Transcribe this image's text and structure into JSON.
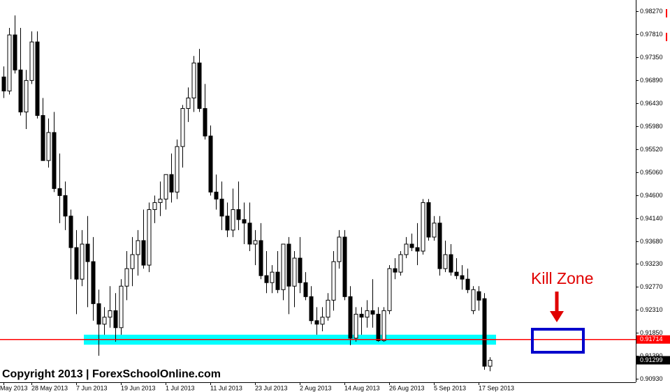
{
  "chart_data": {
    "type": "candlestick",
    "categories": [
      "May 2013",
      null,
      null,
      null,
      null,
      "28 May 2013",
      null,
      null,
      null,
      null,
      null,
      null,
      null,
      "7 Jun 2013",
      null,
      null,
      null,
      null,
      null,
      null,
      null,
      "19 Jun 2013",
      null,
      null,
      null,
      null,
      null,
      null,
      null,
      "1 Jul 2013",
      null,
      null,
      null,
      null,
      null,
      null,
      null,
      "11 Jul 2013",
      null,
      null,
      null,
      null,
      null,
      null,
      null,
      "23 Jul 2013",
      null,
      null,
      null,
      null,
      null,
      null,
      null,
      "2 Aug 2013",
      null,
      null,
      null,
      null,
      null,
      null,
      null,
      "14 Aug 2013",
      null,
      null,
      null,
      null,
      null,
      null,
      null,
      "26 Aug 2013",
      null,
      null,
      null,
      null,
      null,
      null,
      null,
      "5 Sep 2013",
      null,
      null,
      null,
      null,
      null,
      null,
      null,
      "17 Sep 2013",
      null,
      null
    ],
    "open": [
      0.9696,
      0.9668,
      0.978,
      0.971,
      0.9626,
      0.9689,
      0.9766,
      0.9619,
      0.9529,
      0.9585,
      0.9473,
      0.9459,
      0.9418,
      0.9355,
      0.9292,
      0.9362,
      0.9327,
      0.9243,
      0.9202,
      0.9216,
      0.9229,
      0.9195,
      0.9278,
      0.9313,
      0.9341,
      0.9369,
      0.932,
      0.9431,
      0.9445,
      0.9452,
      0.9501,
      0.9466,
      0.9557,
      0.9633,
      0.9654,
      0.9724,
      0.9633,
      0.9578,
      0.9466,
      0.9452,
      0.9418,
      0.939,
      0.9431,
      0.9411,
      0.9404,
      0.9362,
      0.9369,
      0.9299,
      0.9285,
      0.9306,
      0.9271,
      0.9362,
      0.9278,
      0.9334,
      0.9285,
      0.9257,
      0.9209,
      0.9202,
      0.9216,
      0.925,
      0.9327,
      0.9376,
      0.9257,
      0.9174,
      0.9222,
      0.9216,
      0.9229,
      0.9222,
      0.9169,
      0.9229,
      0.9313,
      0.9306,
      0.9341,
      0.9362,
      0.9355,
      0.9348,
      0.9445,
      0.9376,
      0.9404,
      0.9313,
      0.9341,
      0.9306,
      0.9299,
      0.9292,
      0.9229,
      0.9267,
      0.9253,
      0.9118
    ],
    "high": [
      0.9717,
      0.9794,
      0.9819,
      0.9794,
      0.971,
      0.9787,
      0.9787,
      0.9654,
      0.9613,
      0.9626,
      0.9543,
      0.9487,
      0.9431,
      0.939,
      0.939,
      0.9418,
      0.9376,
      0.9271,
      0.9236,
      0.9278,
      0.9264,
      0.9292,
      0.9348,
      0.9376,
      0.939,
      0.9431,
      0.9445,
      0.9459,
      0.9487,
      0.9501,
      0.9543,
      0.9571,
      0.964,
      0.9675,
      0.9738,
      0.9752,
      0.9682,
      0.9599,
      0.9501,
      0.9487,
      0.9445,
      0.9473,
      0.9487,
      0.9445,
      0.9445,
      0.939,
      0.9404,
      0.9348,
      0.932,
      0.9348,
      0.9362,
      0.9376,
      0.9348,
      0.9376,
      0.9306,
      0.9278,
      0.9236,
      0.9236,
      0.9264,
      0.9348,
      0.939,
      0.939,
      0.9278,
      0.9236,
      0.9236,
      0.925,
      0.9292,
      0.9236,
      0.9236,
      0.932,
      0.9334,
      0.9348,
      0.9376,
      0.9383,
      0.9404,
      0.9452,
      0.9452,
      0.9418,
      0.9418,
      0.9369,
      0.9362,
      0.9334,
      0.932,
      0.9313,
      0.9278,
      0.9278,
      0.9264,
      0.9136
    ],
    "low": [
      0.9654,
      0.9661,
      0.9703,
      0.9619,
      0.9592,
      0.9682,
      0.9613,
      0.9529,
      0.9515,
      0.9466,
      0.9404,
      0.939,
      0.9292,
      0.9222,
      0.9278,
      0.9236,
      0.9209,
      0.9139,
      0.9181,
      0.9195,
      0.9167,
      0.9181,
      0.925,
      0.9278,
      0.9299,
      0.9313,
      0.9306,
      0.9404,
      0.9418,
      0.9431,
      0.9445,
      0.9452,
      0.9515,
      0.9606,
      0.9626,
      0.9626,
      0.9571,
      0.9459,
      0.9431,
      0.939,
      0.9376,
      0.9376,
      0.939,
      0.9362,
      0.9348,
      0.932,
      0.9292,
      0.9264,
      0.9264,
      0.9264,
      0.925,
      0.9222,
      0.9236,
      0.9264,
      0.925,
      0.9202,
      0.9181,
      0.9188,
      0.9209,
      0.9229,
      0.9313,
      0.925,
      0.916,
      0.9167,
      0.9181,
      0.9195,
      0.9195,
      0.9167,
      0.9167,
      0.9222,
      0.9292,
      0.9299,
      0.9334,
      0.9348,
      0.932,
      0.9341,
      0.9369,
      0.9369,
      0.9299,
      0.9306,
      0.9299,
      0.9292,
      0.9271,
      0.9264,
      0.9222,
      0.9229,
      0.9111,
      0.9108
    ],
    "close": [
      0.9668,
      0.978,
      0.971,
      0.9626,
      0.9689,
      0.9766,
      0.9619,
      0.9529,
      0.9585,
      0.9473,
      0.9459,
      0.9418,
      0.9355,
      0.9292,
      0.9362,
      0.9327,
      0.9243,
      0.9202,
      0.9216,
      0.9229,
      0.9195,
      0.9278,
      0.9313,
      0.9341,
      0.9369,
      0.932,
      0.9431,
      0.9445,
      0.9452,
      0.9501,
      0.9466,
      0.9557,
      0.9633,
      0.9654,
      0.9724,
      0.9633,
      0.9578,
      0.9466,
      0.9452,
      0.9418,
      0.939,
      0.9431,
      0.9411,
      0.9404,
      0.9362,
      0.9369,
      0.9299,
      0.9285,
      0.9306,
      0.9271,
      0.9362,
      0.9278,
      0.9334,
      0.9285,
      0.9257,
      0.9209,
      0.9202,
      0.9216,
      0.925,
      0.9327,
      0.9376,
      0.9257,
      0.9174,
      0.9222,
      0.9216,
      0.9229,
      0.9222,
      0.9169,
      0.9229,
      0.9313,
      0.9306,
      0.9341,
      0.9362,
      0.9355,
      0.9348,
      0.9445,
      0.9376,
      0.9404,
      0.9313,
      0.9341,
      0.9306,
      0.9299,
      0.9292,
      0.9271,
      0.9271,
      0.925,
      0.9118,
      0.913
    ],
    "ylim": [
      0.9086,
      0.9847
    ],
    "yticks": [
      {
        "value": 0.9093,
        "label": "0.90930"
      },
      {
        "value": 0.9139,
        "label": "0.91390"
      },
      {
        "value": 0.9185,
        "label": "0.91850"
      },
      {
        "value": 0.9231,
        "label": "0.92310"
      },
      {
        "value": 0.9277,
        "label": "0.92770"
      },
      {
        "value": 0.9323,
        "label": "0.93230"
      },
      {
        "value": 0.9368,
        "label": "0.93680"
      },
      {
        "value": 0.9414,
        "label": "0.94140"
      },
      {
        "value": 0.946,
        "label": "0.94600"
      },
      {
        "value": 0.9506,
        "label": "0.95060"
      },
      {
        "value": 0.9552,
        "label": "0.95520"
      },
      {
        "value": 0.9598,
        "label": "0.95980"
      },
      {
        "value": 0.9643,
        "label": "0.96430"
      },
      {
        "value": 0.9689,
        "label": "0.96890"
      },
      {
        "value": 0.9735,
        "label": "0.97350"
      },
      {
        "value": 0.9781,
        "label": "0.97810"
      },
      {
        "value": 0.9827,
        "label": "0.98270"
      }
    ],
    "zone": {
      "low": 0.9161,
      "high": 0.9181,
      "color": "#00ffff"
    },
    "hline": {
      "value": 0.91714,
      "label": "0.91714",
      "color": "#ff0000"
    },
    "last_price": {
      "value": 0.91299,
      "label": "0.91299"
    },
    "annotation": "Kill Zone",
    "watermark": "Copyright 2013 | ForexSchoolOnline.com"
  }
}
